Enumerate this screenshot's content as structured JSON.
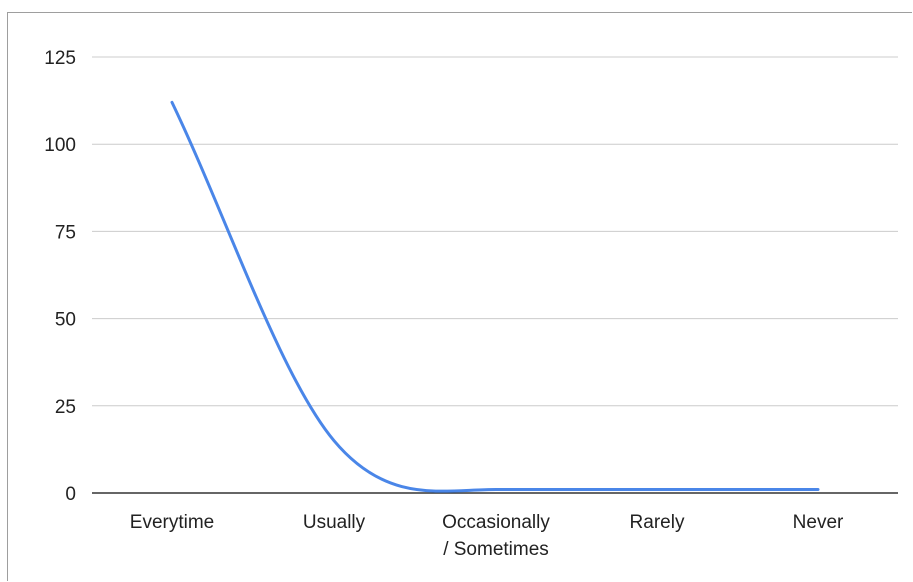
{
  "chart_data": {
    "type": "line",
    "title": "",
    "xlabel": "",
    "ylabel": "",
    "categories": [
      "Everytime",
      "Usually",
      "Occasionally / Sometimes",
      "Rarely",
      "Never"
    ],
    "category_lines": [
      [
        "Everytime"
      ],
      [
        "Usually"
      ],
      [
        "Occasionally",
        "/ Sometimes"
      ],
      [
        "Rarely"
      ],
      [
        "Never"
      ]
    ],
    "series": [
      {
        "values": [
          112,
          15,
          1,
          1,
          1
        ],
        "color": "#4a86e8"
      }
    ],
    "ylim": [
      0,
      125
    ],
    "yticks": [
      0,
      25,
      50,
      75,
      100,
      125
    ],
    "ytick_labels": [
      "0",
      "25",
      "50",
      "75",
      "100",
      "125"
    ],
    "smooth": true,
    "grid": true,
    "legend": "none"
  },
  "colors": {
    "gridline": "#cccccc",
    "baseline": "#333333",
    "line": "#4a86e8"
  }
}
